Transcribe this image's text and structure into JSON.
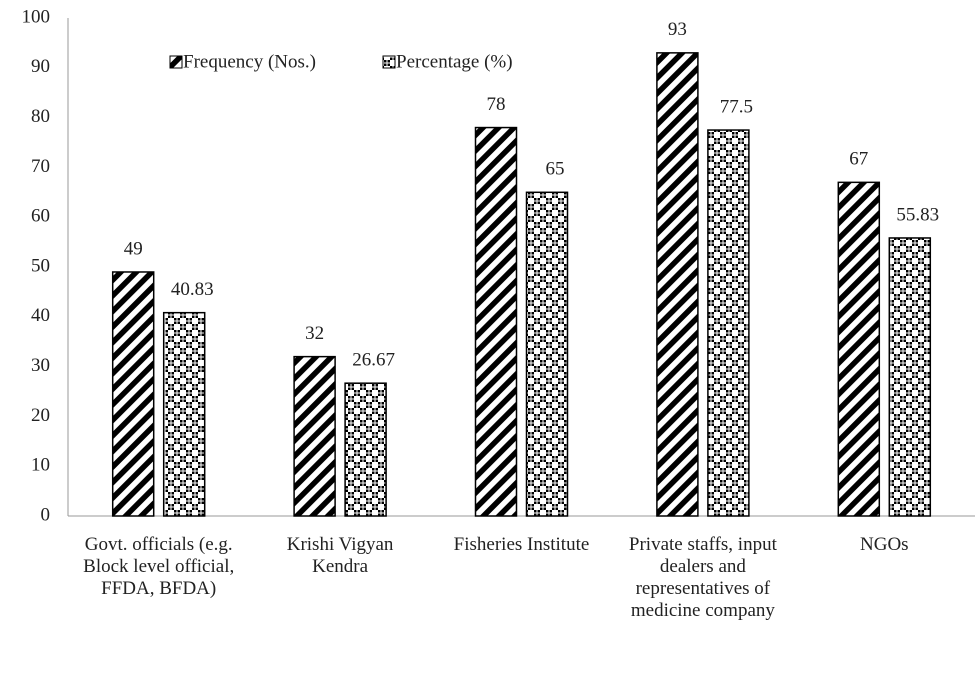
{
  "chart_data": {
    "type": "bar",
    "categories": [
      "Govt. officials (e.g. Block level official, FFDA, BFDA)",
      "Krishi Vigyan Kendra",
      "Fisheries Institute",
      "Private staffs, input dealers and representatives of medicine company",
      "NGOs"
    ],
    "series": [
      {
        "name": "Frequency (Nos.)",
        "color": "#000000",
        "values": [
          49,
          32,
          78,
          93,
          67
        ]
      },
      {
        "name": "Percentage (%)",
        "color": "#000000",
        "values": [
          40.83,
          26.67,
          65,
          77.5,
          55.83
        ]
      }
    ],
    "ylim": [
      0,
      100
    ],
    "yticks": [
      0,
      10,
      20,
      30,
      40,
      50,
      60,
      70,
      80,
      90,
      100
    ],
    "grid": false,
    "legend": "top"
  }
}
